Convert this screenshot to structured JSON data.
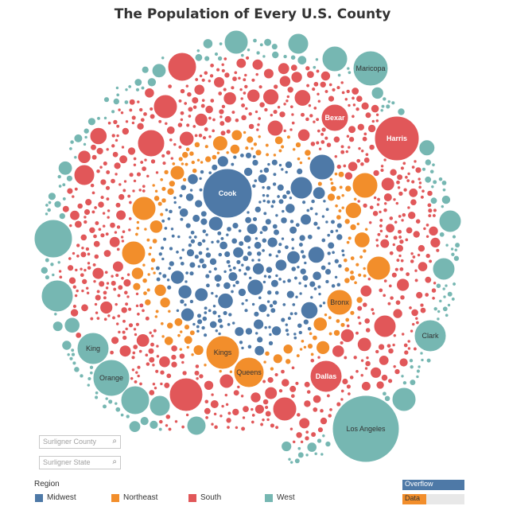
{
  "title": "The Population of Every U.S. County",
  "search_county": {
    "placeholder": "Surligner County"
  },
  "search_state": {
    "placeholder": "Surligner State"
  },
  "legend": {
    "title": "Region",
    "items": [
      {
        "label": "Midwest",
        "color": "#4e79a7"
      },
      {
        "label": "Northeast",
        "color": "#f28e2b"
      },
      {
        "label": "South",
        "color": "#e15759"
      },
      {
        "label": "West",
        "color": "#76b7b2"
      }
    ]
  },
  "controls": {
    "overflow_label": "Overflow",
    "data_label": "Data"
  },
  "chart_data": {
    "type": "bubble",
    "title": "The Population of Every U.S. County",
    "color_by": "Region",
    "labeled_counties": [
      {
        "name": "Cook",
        "region": "Midwest"
      },
      {
        "name": "Maricopa",
        "region": "West"
      },
      {
        "name": "Bexar",
        "region": "South"
      },
      {
        "name": "Harris",
        "region": "South"
      },
      {
        "name": "Bronx",
        "region": "Northeast"
      },
      {
        "name": "Clark",
        "region": "West"
      },
      {
        "name": "King",
        "region": "West"
      },
      {
        "name": "Orange",
        "region": "West"
      },
      {
        "name": "Kings",
        "region": "Northeast"
      },
      {
        "name": "Queens",
        "region": "Northeast"
      },
      {
        "name": "Dallas",
        "region": "South"
      },
      {
        "name": "Los Angeles",
        "region": "West"
      }
    ]
  }
}
